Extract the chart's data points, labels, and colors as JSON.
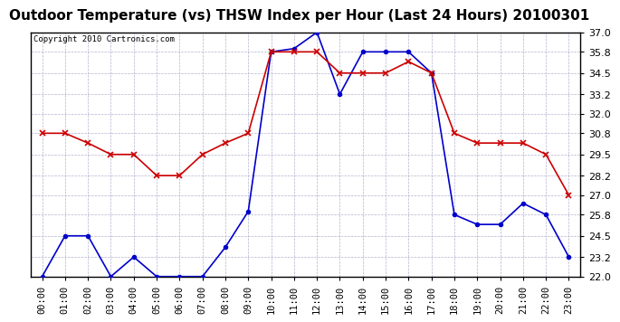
{
  "title": "Outdoor Temperature (vs) THSW Index per Hour (Last 24 Hours) 20100301",
  "copyright": "Copyright 2010 Cartronics.com",
  "hours": [
    "00:00",
    "01:00",
    "02:00",
    "03:00",
    "04:00",
    "05:00",
    "06:00",
    "07:00",
    "08:00",
    "09:00",
    "10:00",
    "11:00",
    "12:00",
    "13:00",
    "14:00",
    "15:00",
    "16:00",
    "17:00",
    "18:00",
    "19:00",
    "20:00",
    "21:00",
    "22:00",
    "23:00"
  ],
  "temp_red": [
    30.8,
    30.8,
    30.2,
    29.5,
    29.5,
    28.2,
    28.2,
    29.5,
    30.2,
    30.8,
    35.8,
    35.8,
    35.8,
    34.5,
    34.5,
    34.5,
    35.2,
    34.5,
    30.8,
    30.2,
    30.2,
    30.2,
    29.5,
    27.0
  ],
  "thsw_blue": [
    22.0,
    24.5,
    24.5,
    22.0,
    23.2,
    22.0,
    22.0,
    22.0,
    23.8,
    26.0,
    35.8,
    36.0,
    37.0,
    33.2,
    35.8,
    35.8,
    35.8,
    34.5,
    25.8,
    25.2,
    25.2,
    26.5,
    25.8,
    23.2
  ],
  "ylim": [
    22.0,
    37.0
  ],
  "yticks": [
    22.0,
    23.2,
    24.5,
    25.8,
    27.0,
    28.2,
    29.5,
    30.8,
    32.0,
    33.2,
    34.5,
    35.8,
    37.0
  ],
  "bg_color": "#ffffff",
  "grid_color": "#aaaacc",
  "red_color": "#cc0000",
  "blue_color": "#0000cc",
  "title_fontsize": 11,
  "copyright_fontsize": 6.5,
  "tick_fontsize": 7.5,
  "ytick_fontsize": 8
}
